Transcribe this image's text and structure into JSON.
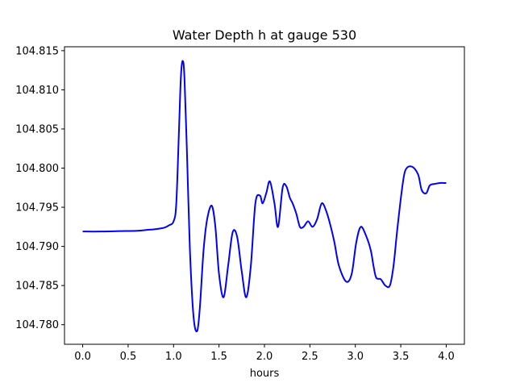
{
  "chart_data": {
    "type": "line",
    "title": "Water Depth h at gauge 530",
    "xlabel": "hours",
    "ylabel": "",
    "xlim": [
      -0.2,
      4.2
    ],
    "ylim": [
      104.7775,
      104.8155
    ],
    "xticks": [
      0.0,
      0.5,
      1.0,
      1.5,
      2.0,
      2.5,
      3.0,
      3.5,
      4.0
    ],
    "xtick_labels": [
      "0.0",
      "0.5",
      "1.0",
      "1.5",
      "2.0",
      "2.5",
      "3.0",
      "3.5",
      "4.0"
    ],
    "yticks": [
      104.78,
      104.785,
      104.79,
      104.795,
      104.8,
      104.805,
      104.81,
      104.815
    ],
    "ytick_labels": [
      "104.780",
      "104.785",
      "104.790",
      "104.795",
      "104.800",
      "104.805",
      "104.810",
      "104.815"
    ],
    "grid": false,
    "line_color": "#0000ff",
    "series": [
      {
        "x": [
          0.0,
          0.2,
          0.4,
          0.6,
          0.7,
          0.8,
          0.9,
          0.95,
          1.0,
          1.03,
          1.06,
          1.08,
          1.1,
          1.12,
          1.15,
          1.18,
          1.22,
          1.26,
          1.29,
          1.33,
          1.37,
          1.42,
          1.46,
          1.5,
          1.55,
          1.6,
          1.65,
          1.7,
          1.75,
          1.8,
          1.85,
          1.9,
          1.95,
          1.98,
          2.02,
          2.06,
          2.11,
          2.15,
          2.2,
          2.24,
          2.28,
          2.31,
          2.35,
          2.39,
          2.43,
          2.48,
          2.53,
          2.58,
          2.63,
          2.68,
          2.73,
          2.77,
          2.82,
          2.9,
          2.96,
          3.01,
          3.06,
          3.12,
          3.17,
          3.2,
          3.23,
          3.28,
          3.33,
          3.38,
          3.42,
          3.46,
          3.51,
          3.55,
          3.62,
          3.69,
          3.73,
          3.78,
          3.82,
          3.88,
          3.93,
          3.97,
          4.0
        ],
        "y": [
          104.7919,
          104.7919,
          104.79195,
          104.792,
          104.7921,
          104.7922,
          104.7924,
          104.7927,
          104.7932,
          104.7955,
          104.805,
          104.8115,
          104.8137,
          104.8115,
          104.801,
          104.7895,
          104.781,
          104.7792,
          104.7823,
          104.7895,
          104.7935,
          104.7952,
          104.7925,
          104.7865,
          104.7835,
          104.7875,
          104.7918,
          104.7912,
          104.7868,
          104.7835,
          104.7875,
          104.7955,
          104.7965,
          104.7955,
          104.7968,
          104.7983,
          104.7955,
          104.7925,
          104.7975,
          104.7977,
          104.7962,
          104.7955,
          104.7942,
          104.7925,
          104.7925,
          104.7932,
          104.7925,
          104.7935,
          104.7955,
          104.7945,
          104.7925,
          104.7905,
          104.7875,
          104.7855,
          104.7865,
          104.7905,
          104.7925,
          104.7913,
          104.7895,
          104.7875,
          104.786,
          104.7858,
          104.785,
          104.785,
          104.7875,
          104.792,
          104.797,
          104.7997,
          104.8002,
          104.7992,
          104.7972,
          104.7968,
          104.7978,
          104.798,
          104.7981,
          104.7981,
          104.7981
        ]
      }
    ]
  }
}
